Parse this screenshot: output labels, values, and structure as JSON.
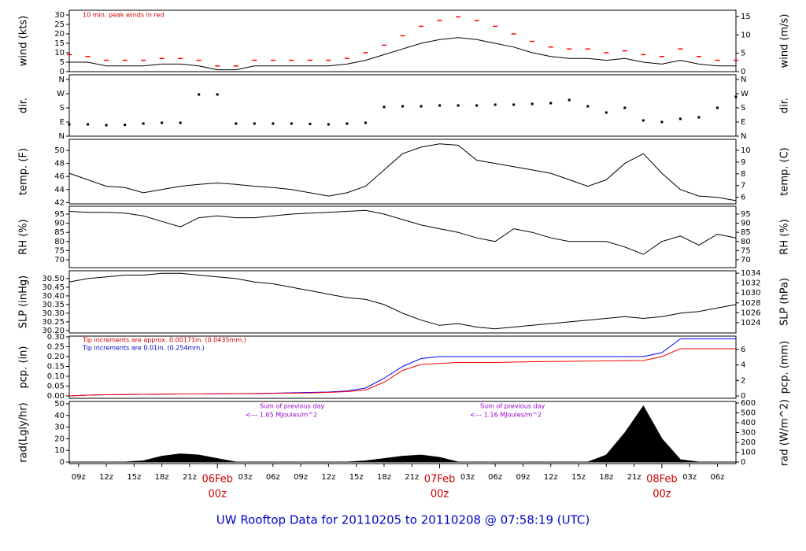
{
  "title": "UW Rooftop Data for 20110205  to  20110208 @ 07:58:19  (UTC)",
  "chart_data": [
    {
      "type": "line",
      "ylabel": "wind (kts)",
      "y2label": "wind (m/s)",
      "ylim": [
        0,
        32.5
      ],
      "yticks": [
        0,
        5,
        10,
        15,
        20,
        25,
        30
      ],
      "y2lim": [
        0,
        16.7
      ],
      "y2ticks": [
        0,
        5,
        10,
        15
      ],
      "xlim": [
        8,
        80
      ],
      "notes": [
        {
          "text": "10 min. peak winds in red",
          "color": "#d00000"
        }
      ],
      "x": [
        8,
        10,
        12,
        14,
        16,
        18,
        20,
        22,
        24,
        26,
        28,
        30,
        32,
        34,
        36,
        38,
        40,
        42,
        44,
        46,
        48,
        50,
        52,
        54,
        56,
        58,
        60,
        62,
        64,
        66,
        68,
        70,
        72,
        74,
        76,
        78,
        80
      ],
      "series": [
        {
          "name": "wind",
          "color": "#000000",
          "values": [
            5,
            5,
            3,
            3,
            3,
            4,
            4,
            3,
            1,
            1,
            3,
            3,
            3,
            3,
            3,
            4,
            6,
            9,
            12,
            15,
            17,
            18,
            17,
            15,
            13,
            10,
            8,
            7,
            7,
            6,
            7,
            5,
            4,
            6,
            4,
            3,
            3
          ]
        },
        {
          "name": "peak",
          "color": "#ff0000",
          "marker": "dash",
          "values": [
            9,
            8,
            6,
            6,
            6,
            7,
            7,
            6,
            3,
            3,
            6,
            6,
            6,
            6,
            6,
            7,
            10,
            14,
            19,
            24,
            27,
            29,
            27,
            24,
            20,
            16,
            13,
            12,
            12,
            10,
            11,
            9,
            8,
            12,
            8,
            6,
            6
          ]
        }
      ]
    },
    {
      "type": "scatter",
      "ylabel": "dir.",
      "y2label": "dir.",
      "ylim": [
        0,
        390
      ],
      "yticks": [
        {
          "value": 0,
          "label": "N"
        },
        {
          "value": 90,
          "label": "E"
        },
        {
          "value": 180,
          "label": "S"
        },
        {
          "value": 270,
          "label": "W"
        },
        {
          "value": 360,
          "label": "N"
        }
      ],
      "y2lim": [
        0,
        390
      ],
      "y2ticks": [
        {
          "value": 0,
          "label": "N"
        },
        {
          "value": 90,
          "label": "E"
        },
        {
          "value": 180,
          "label": "S"
        },
        {
          "value": 270,
          "label": "W"
        },
        {
          "value": 360,
          "label": "N"
        }
      ],
      "xlim": [
        8,
        80
      ],
      "x": [
        8,
        10,
        12,
        14,
        16,
        18,
        20,
        22,
        24,
        26,
        28,
        30,
        32,
        34,
        36,
        38,
        40,
        42,
        44,
        46,
        48,
        50,
        52,
        54,
        56,
        58,
        60,
        62,
        64,
        66,
        68,
        70,
        72,
        74,
        76,
        78,
        80
      ],
      "series": [
        {
          "name": "dir",
          "color": "#000000",
          "values": [
            75,
            75,
            70,
            72,
            80,
            85,
            85,
            265,
            265,
            80,
            80,
            80,
            80,
            78,
            75,
            80,
            85,
            185,
            190,
            190,
            195,
            195,
            195,
            200,
            200,
            205,
            210,
            230,
            190,
            150,
            180,
            100,
            90,
            110,
            120,
            180,
            250
          ]
        }
      ]
    },
    {
      "type": "line",
      "ylabel": "temp. (F)",
      "y2label": "temp. (C)",
      "ylim": [
        41.8,
        51.7
      ],
      "yticks": [
        42,
        44,
        46,
        48,
        50
      ],
      "y2lim": [
        5.44,
        10.94
      ],
      "y2ticks": [
        6,
        7,
        8,
        9,
        10
      ],
      "xlim": [
        8,
        80
      ],
      "x": [
        8,
        10,
        12,
        14,
        16,
        18,
        20,
        22,
        24,
        26,
        28,
        30,
        32,
        34,
        36,
        38,
        40,
        42,
        44,
        46,
        48,
        50,
        52,
        54,
        56,
        58,
        60,
        62,
        64,
        66,
        68,
        70,
        72,
        74,
        76,
        78,
        80
      ],
      "series": [
        {
          "name": "temp",
          "color": "#000000",
          "values": [
            46.5,
            45.5,
            44.5,
            44.3,
            43.5,
            44,
            44.5,
            44.8,
            45,
            44.8,
            44.5,
            44.3,
            44,
            43.5,
            43,
            43.5,
            44.5,
            47,
            49.5,
            50.5,
            51,
            50.8,
            48.5,
            48,
            47.5,
            47,
            46.5,
            45.5,
            44.5,
            45.5,
            48,
            49.5,
            46.5,
            44,
            43,
            42.8,
            42.3
          ]
        }
      ]
    },
    {
      "type": "line",
      "ylabel": "RH (%)",
      "y2label": "RH (%)",
      "ylim": [
        65.7,
        99.3
      ],
      "yticks": [
        70,
        75,
        80,
        85,
        90,
        95
      ],
      "y2lim": [
        65.7,
        99.3
      ],
      "y2ticks": [
        70,
        75,
        80,
        85,
        90,
        95
      ],
      "xlim": [
        8,
        80
      ],
      "x": [
        8,
        10,
        12,
        14,
        16,
        18,
        20,
        22,
        24,
        26,
        28,
        30,
        32,
        34,
        36,
        38,
        40,
        42,
        44,
        46,
        48,
        50,
        52,
        54,
        56,
        58,
        60,
        62,
        64,
        66,
        68,
        70,
        72,
        74,
        76,
        78,
        80
      ],
      "series": [
        {
          "name": "RH",
          "color": "#000000",
          "values": [
            96.5,
            96,
            96,
            95.5,
            94,
            91,
            88,
            93,
            94,
            93,
            93,
            94,
            95,
            95.5,
            96,
            96.5,
            97,
            95,
            92,
            89,
            87,
            85,
            82,
            80,
            87,
            85,
            82,
            80,
            80,
            80,
            77,
            73,
            80,
            83,
            78,
            84,
            82
          ]
        }
      ]
    },
    {
      "type": "line",
      "ylabel": "SLP (inHg)",
      "y2label": "SLP (hPa)",
      "ylim": [
        30.186,
        30.545
      ],
      "yticks": [
        {
          "value": 30.2,
          "label": "30.20"
        },
        {
          "value": 30.25,
          "label": "30.25"
        },
        {
          "value": 30.3,
          "label": "30.30"
        },
        {
          "value": 30.35,
          "label": "30.35"
        },
        {
          "value": 30.4,
          "label": "30.40"
        },
        {
          "value": 30.45,
          "label": "30.45"
        },
        {
          "value": 30.5,
          "label": "30.50"
        }
      ],
      "y2lim": [
        1021.9,
        1034.5
      ],
      "y2ticks": [
        1024,
        1026,
        1028,
        1030,
        1032,
        1034
      ],
      "xlim": [
        8,
        80
      ],
      "x": [
        8,
        10,
        12,
        14,
        16,
        18,
        20,
        22,
        24,
        26,
        28,
        30,
        32,
        34,
        36,
        38,
        40,
        42,
        44,
        46,
        48,
        50,
        52,
        54,
        56,
        58,
        60,
        62,
        64,
        66,
        68,
        70,
        72,
        74,
        76,
        78,
        80
      ],
      "series": [
        {
          "name": "SLP",
          "color": "#000000",
          "values": [
            30.48,
            30.5,
            30.51,
            30.52,
            30.52,
            30.53,
            30.53,
            30.52,
            30.51,
            30.5,
            30.48,
            30.47,
            30.45,
            30.43,
            30.41,
            30.39,
            30.38,
            30.35,
            30.3,
            30.26,
            30.23,
            30.24,
            30.22,
            30.21,
            30.22,
            30.23,
            30.24,
            30.25,
            30.26,
            30.27,
            30.28,
            30.27,
            30.28,
            30.3,
            30.31,
            30.33,
            30.35
          ]
        }
      ]
    },
    {
      "type": "line",
      "ylabel": "pcp. (in)",
      "y2label": "pcp. (mm)",
      "ylim": [
        -0.012,
        0.304
      ],
      "yticks": [
        {
          "value": 0,
          "label": "0.00"
        },
        {
          "value": 0.05,
          "label": "0.05"
        },
        {
          "value": 0.1,
          "label": "0.10"
        },
        {
          "value": 0.15,
          "label": "0.15"
        },
        {
          "value": 0.2,
          "label": "0.20"
        },
        {
          "value": 0.25,
          "label": "0.25"
        },
        {
          "value": 0.3,
          "label": "0.30"
        }
      ],
      "y2lim": [
        -0.3,
        7.73
      ],
      "y2ticks": [
        0,
        2,
        4,
        6
      ],
      "xlim": [
        8,
        80
      ],
      "notes": [
        {
          "text": "Tip increments are approx. 0.00171in. (0.0435mm.)",
          "color": "#d00000"
        },
        {
          "text": "Tip increments are 0.01in. (0.254mm.)",
          "color": "#0000cc"
        }
      ],
      "x": [
        8,
        10,
        12,
        14,
        16,
        18,
        20,
        22,
        24,
        26,
        28,
        30,
        32,
        34,
        36,
        38,
        40,
        42,
        44,
        46,
        48,
        50,
        52,
        54,
        56,
        58,
        60,
        62,
        64,
        66,
        68,
        70,
        72,
        74,
        76,
        78,
        80
      ],
      "series": [
        {
          "name": "pcp 0.01",
          "color": "#0000ff",
          "values": [
            0,
            0.004,
            0.006,
            0.007,
            0.008,
            0.009,
            0.01,
            0.01,
            0.011,
            0.012,
            0.013,
            0.014,
            0.016,
            0.018,
            0.02,
            0.025,
            0.04,
            0.09,
            0.15,
            0.19,
            0.2,
            0.2,
            0.2,
            0.2,
            0.2,
            0.2,
            0.2,
            0.2,
            0.2,
            0.2,
            0.2,
            0.2,
            0.22,
            0.29,
            0.29,
            0.29,
            0.29
          ]
        },
        {
          "name": "pcp 0.00171",
          "color": "#ff0000",
          "values": [
            0,
            0.004,
            0.006,
            0.007,
            0.008,
            0.009,
            0.01,
            0.01,
            0.011,
            0.012,
            0.012,
            0.013,
            0.014,
            0.015,
            0.018,
            0.022,
            0.03,
            0.07,
            0.13,
            0.16,
            0.165,
            0.17,
            0.17,
            0.17,
            0.172,
            0.174,
            0.175,
            0.176,
            0.177,
            0.178,
            0.179,
            0.18,
            0.2,
            0.24,
            0.24,
            0.24,
            0.24
          ]
        }
      ]
    },
    {
      "type": "area",
      "ylabel": "rad(Lgly/hr)",
      "y2label": "rad (W/m^2)",
      "ylim": [
        -1.35,
        52
      ],
      "yticks": [
        0,
        10,
        20,
        30,
        40,
        50
      ],
      "y2lim": [
        -16,
        616
      ],
      "y2ticks": [
        0,
        100,
        200,
        300,
        400,
        500,
        600
      ],
      "xlim": [
        8,
        80
      ],
      "xticks": [
        {
          "value": 9,
          "label": "09z"
        },
        {
          "value": 12,
          "label": "12z"
        },
        {
          "value": 15,
          "label": "15z"
        },
        {
          "value": 18,
          "label": "18z"
        },
        {
          "value": 21,
          "label": "21z"
        },
        {
          "value": 27,
          "label": "03z"
        },
        {
          "value": 30,
          "label": "06z"
        },
        {
          "value": 33,
          "label": "09z"
        },
        {
          "value": 36,
          "label": "12z"
        },
        {
          "value": 39,
          "label": "15z"
        },
        {
          "value": 42,
          "label": "18z"
        },
        {
          "value": 45,
          "label": "21z"
        },
        {
          "value": 51,
          "label": "03z"
        },
        {
          "value": 54,
          "label": "06z"
        },
        {
          "value": 57,
          "label": "09z"
        },
        {
          "value": 60,
          "label": "12z"
        },
        {
          "value": 63,
          "label": "15z"
        },
        {
          "value": 66,
          "label": "18z"
        },
        {
          "value": 69,
          "label": "21z"
        },
        {
          "value": 75,
          "label": "03z"
        },
        {
          "value": 78,
          "label": "06z"
        }
      ],
      "day_ticks": [
        {
          "value": 24,
          "date": "06Feb",
          "hour": "00z"
        },
        {
          "value": 48,
          "date": "07Feb",
          "hour": "00z"
        },
        {
          "value": 72,
          "date": "08Feb",
          "hour": "00z"
        }
      ],
      "notes": [
        {
          "text": "Sum of previous day",
          "color": "#9900cc"
        },
        {
          "text": "<--- 1.65 MJoules/m^2",
          "color": "#9900cc"
        },
        {
          "text": "Sum of previous day",
          "color": "#9900cc"
        },
        {
          "text": "<--- 1.16 MJoules/m^2",
          "color": "#9900cc"
        }
      ],
      "x": [
        8,
        10,
        12,
        14,
        16,
        18,
        20,
        22,
        24,
        26,
        28,
        30,
        32,
        34,
        36,
        38,
        40,
        42,
        44,
        46,
        48,
        50,
        52,
        54,
        56,
        58,
        60,
        62,
        64,
        66,
        68,
        70,
        72,
        74,
        76,
        78,
        80
      ],
      "series": [
        {
          "name": "rad",
          "color": "#000000",
          "values": [
            0,
            0,
            0,
            0,
            1,
            5,
            7,
            6,
            3,
            0,
            0,
            0,
            0,
            0,
            0,
            0,
            1,
            3,
            5,
            6,
            4,
            0,
            0,
            0,
            0,
            0,
            0,
            0,
            0,
            6,
            25,
            48,
            20,
            2,
            0,
            0,
            0
          ]
        }
      ]
    }
  ]
}
